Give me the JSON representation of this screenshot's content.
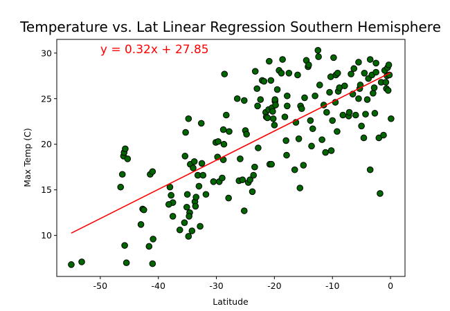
{
  "chart_data": {
    "type": "scatter",
    "title": "Temperature vs. Lat Linear Regression Southern Hemisphere",
    "xlabel": "Latitude",
    "ylabel": "Max Temp (C)",
    "xlim": [
      -57.5,
      2.5
    ],
    "ylim": [
      5.5,
      31.5
    ],
    "xticks": [
      -50,
      -40,
      -30,
      -20,
      -10,
      0
    ],
    "yticks": [
      10,
      15,
      20,
      25,
      30
    ],
    "grid": false,
    "marker_color": "#006400",
    "marker_edge_color": "#000000",
    "line_color": "#ff0000",
    "regression": {
      "slope": 0.32,
      "intercept": 27.85,
      "x_range": [
        -55,
        0
      ]
    },
    "annotation": {
      "text": "y = 0.32x +  27.85",
      "x": -50,
      "y": 30,
      "color": "#ff0000"
    },
    "points": [
      [
        -55,
        6.8
      ],
      [
        -53.2,
        7.1
      ],
      [
        -46.5,
        15.3
      ],
      [
        -46.2,
        16.7
      ],
      [
        -46,
        18.7
      ],
      [
        -45.9,
        19.1
      ],
      [
        -45.7,
        19.5
      ],
      [
        -45.3,
        18.4
      ],
      [
        -45.8,
        8.9
      ],
      [
        -45.5,
        7.0
      ],
      [
        -43,
        11.2
      ],
      [
        -42.7,
        12.9
      ],
      [
        -42.5,
        12.8
      ],
      [
        -41.6,
        8.8
      ],
      [
        -41.4,
        16.7
      ],
      [
        -41,
        17.0
      ],
      [
        -40.9,
        9.6
      ],
      [
        -41,
        6.9
      ],
      [
        -38,
        15.3
      ],
      [
        -37.8,
        14.4
      ],
      [
        -37.5,
        13.6
      ],
      [
        -38.2,
        13.4
      ],
      [
        -37.5,
        12.1
      ],
      [
        -36.3,
        10.6
      ],
      [
        -35.5,
        11.4
      ],
      [
        -35.4,
        18.7
      ],
      [
        -35.3,
        21.3
      ],
      [
        -34.8,
        22.8
      ],
      [
        -35.1,
        13.1
      ],
      [
        -35,
        14.5
      ],
      [
        -34.5,
        17.8
      ],
      [
        -34.6,
        12.5
      ],
      [
        -34.7,
        12.1
      ],
      [
        -34.8,
        9.9
      ],
      [
        -34.2,
        10.5
      ],
      [
        -34,
        17.4
      ],
      [
        -33.8,
        18.1
      ],
      [
        -33.7,
        13.7
      ],
      [
        -33.6,
        13.2
      ],
      [
        -33.5,
        14.2
      ],
      [
        -33.2,
        16.6
      ],
      [
        -33,
        15.4
      ],
      [
        -32.8,
        11.0
      ],
      [
        -32.6,
        22.3
      ],
      [
        -32.5,
        17.9
      ],
      [
        -32.3,
        16.6
      ],
      [
        -31.8,
        14.5
      ],
      [
        -30.5,
        15.9
      ],
      [
        -30.1,
        20.2
      ],
      [
        -29.8,
        18.6
      ],
      [
        -29.7,
        20.3
      ],
      [
        -29.5,
        15.9
      ],
      [
        -29,
        16.3
      ],
      [
        -28.8,
        18.3
      ],
      [
        -28.8,
        21.6
      ],
      [
        -28.7,
        20.0
      ],
      [
        -28.6,
        27.7
      ],
      [
        -28.3,
        23.2
      ],
      [
        -27.9,
        14.1
      ],
      [
        -27.8,
        21.4
      ],
      [
        -26.4,
        25.0
      ],
      [
        -26.1,
        16.0
      ],
      [
        -25.9,
        18.4
      ],
      [
        -25.5,
        16.1
      ],
      [
        -25.2,
        24.8
      ],
      [
        -25.2,
        12.7
      ],
      [
        -25,
        21.5
      ],
      [
        -24.8,
        21.1
      ],
      [
        -24.5,
        15.8
      ],
      [
        -24.2,
        16.1
      ],
      [
        -23.8,
        14.8
      ],
      [
        -23.6,
        16.6
      ],
      [
        -23.4,
        17.5
      ],
      [
        -23.3,
        28.0
      ],
      [
        -23,
        26.1
      ],
      [
        -22.9,
        24.2
      ],
      [
        -22.8,
        19.6
      ],
      [
        -22.4,
        24.9
      ],
      [
        -22.1,
        27.0
      ],
      [
        -21.8,
        26.9
      ],
      [
        -21.5,
        23.5
      ],
      [
        -21.4,
        23.0
      ],
      [
        -21.2,
        22.9
      ],
      [
        -21,
        23.8
      ],
      [
        -20.9,
        29.1
      ],
      [
        -20.8,
        17.8
      ],
      [
        -20.6,
        27.0
      ],
      [
        -20.5,
        17.8
      ],
      [
        -20.4,
        24.0
      ],
      [
        -20.3,
        23.6
      ],
      [
        -20.2,
        22.8
      ],
      [
        -20,
        22.1
      ],
      [
        -19.9,
        24.7
      ],
      [
        -19.9,
        24.9
      ],
      [
        -19.8,
        24.3
      ],
      [
        -19.5,
        26.0
      ],
      [
        -19.2,
        28.1
      ],
      [
        -18.8,
        27.8
      ],
      [
        -18.6,
        29.3
      ],
      [
        -18.2,
        23.0
      ],
      [
        -18,
        20.4
      ],
      [
        -17.9,
        18.8
      ],
      [
        -17.8,
        25.3
      ],
      [
        -17.8,
        24.2
      ],
      [
        -17.5,
        27.8
      ],
      [
        -16.5,
        17.2
      ],
      [
        -16.3,
        22.4
      ],
      [
        -16,
        27.6
      ],
      [
        -15.8,
        20.6
      ],
      [
        -15.6,
        15.2
      ],
      [
        -15.5,
        24.2
      ],
      [
        -15.3,
        23.9
      ],
      [
        -15,
        17.7
      ],
      [
        -14.8,
        25.1
      ],
      [
        -14.5,
        29.2
      ],
      [
        -14.2,
        28.5
      ],
      [
        -14.1,
        28.7
      ],
      [
        -13.8,
        22.6
      ],
      [
        -13.6,
        19.8
      ],
      [
        -13.4,
        21.7
      ],
      [
        -13,
        25.3
      ],
      [
        -12.5,
        30.3
      ],
      [
        -12.4,
        29.6
      ],
      [
        -12.2,
        26.5
      ],
      [
        -11.8,
        20.5
      ],
      [
        -11.5,
        24.3
      ],
      [
        -11.2,
        19.1
      ],
      [
        -11,
        23.5
      ],
      [
        -10.5,
        25.7
      ],
      [
        -10.3,
        27.4
      ],
      [
        -10.2,
        19.3
      ],
      [
        -10,
        22.6
      ],
      [
        -9.8,
        29.5
      ],
      [
        -9.5,
        24.6
      ],
      [
        -9.4,
        27.6
      ],
      [
        -9.2,
        21.4
      ],
      [
        -9.1,
        27.8
      ],
      [
        -9,
        25.8
      ],
      [
        -8.8,
        26.2
      ],
      [
        -8.2,
        23.2
      ],
      [
        -7.9,
        26.4
      ],
      [
        -7.2,
        23.1
      ],
      [
        -7.1,
        23.5
      ],
      [
        -6.8,
        27.7
      ],
      [
        -6.5,
        25.5
      ],
      [
        -6.3,
        28.3
      ],
      [
        -6,
        23.2
      ],
      [
        -5.5,
        25.0
      ],
      [
        -5.5,
        29.0
      ],
      [
        -5.3,
        26.1
      ],
      [
        -5.2,
        26.5
      ],
      [
        -5,
        22.0
      ],
      [
        -4.6,
        20.7
      ],
      [
        -4.5,
        27.8
      ],
      [
        -4.3,
        23.3
      ],
      [
        -4,
        24.9
      ],
      [
        -3.8,
        27.2
      ],
      [
        -3.5,
        29.3
      ],
      [
        -3.5,
        17.2
      ],
      [
        -3.2,
        27.6
      ],
      [
        -3,
        25.6
      ],
      [
        -2.8,
        26.2
      ],
      [
        -2.7,
        23.4
      ],
      [
        -2.5,
        27.9
      ],
      [
        -2.5,
        28.9
      ],
      [
        -2,
        20.7
      ],
      [
        -1.8,
        14.6
      ],
      [
        -1.6,
        26.8
      ],
      [
        -1.2,
        21.0
      ],
      [
        -1,
        28.1
      ],
      [
        -0.8,
        26.8
      ],
      [
        -0.7,
        26.1
      ],
      [
        -0.6,
        27.5
      ],
      [
        -0.5,
        28.4
      ],
      [
        -0.4,
        25.9
      ],
      [
        -0.3,
        28.7
      ],
      [
        -0.2,
        27.6
      ],
      [
        0.1,
        22.8
      ]
    ]
  }
}
